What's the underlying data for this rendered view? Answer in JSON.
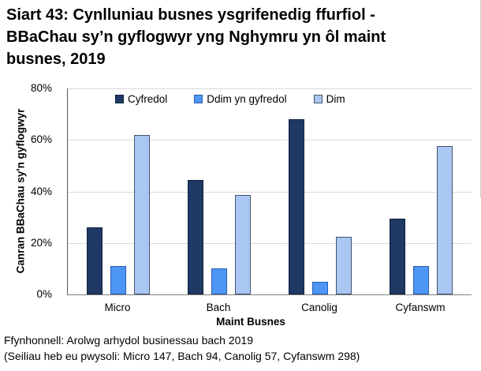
{
  "title_lines": [
    "Siart 43: Cynlluniau busnes ysgrifenedig ffurfiol -",
    "BBaChau sy’n gyflogwyr yng Nghymru yn ôl maint",
    "busnes, 2019"
  ],
  "footer_lines": [
    "Ffynhonnell: Arolwg arhydol businessau bach 2019",
    "(Seiliau heb eu pwysoli: Micro 147, Bach 94, Canolig 57, Cyfanswm 298)"
  ],
  "colors": {
    "navy": "#1F3864",
    "medium_blue": "#4D96F5",
    "light_blue": "#A9C7F2",
    "gridline": "#D9D9D9",
    "axis_left": "#595959",
    "axis_bottom": "#808080",
    "bar_borders": {
      "navy": "#10243E",
      "medium_blue": "#2A5DAE",
      "light_blue": "#44546A"
    }
  },
  "chart_data": {
    "type": "bar",
    "title": "Siart 43: Cynlluniau busnes ysgrifenedig ffurfiol - BBaChau sy’n gyflogwyr yng Nghymru yn ôl maint busnes, 2019",
    "categories": [
      "Micro",
      "Bach",
      "Canolig",
      "Cyfanswm"
    ],
    "series": [
      {
        "name": "Cyfredol",
        "color_key": "navy",
        "values": [
          26,
          44.5,
          68,
          29.5
        ]
      },
      {
        "name": "Ddim yn gyfredol",
        "color_key": "medium_blue",
        "values": [
          11,
          10,
          5,
          11
        ]
      },
      {
        "name": "Dim",
        "color_key": "light_blue",
        "values": [
          62,
          38.5,
          22.5,
          57.5
        ]
      }
    ],
    "xlabel": "Maint Busnes",
    "ylabel": "Canran BBaChau sy'n gyflogwyr",
    "ylim": [
      0,
      80
    ],
    "yticks": [
      0,
      20,
      40,
      60,
      80
    ],
    "ytick_suffix": "%",
    "grid": true,
    "legend_position": "top-inside"
  }
}
